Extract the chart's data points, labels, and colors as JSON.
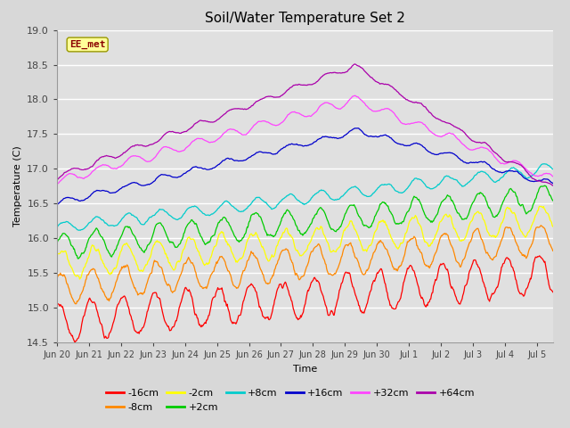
{
  "title": "Soil/Water Temperature Set 2",
  "xlabel": "Time",
  "ylabel": "Temperature (C)",
  "ylim": [
    14.5,
    19.0
  ],
  "annotation": "EE_met",
  "bg_color": "#d8d8d8",
  "plot_bg_color": "#e0e0e0",
  "series": [
    {
      "label": "-16cm",
      "color": "#ff0000"
    },
    {
      "label": "-8cm",
      "color": "#ff8800"
    },
    {
      "label": "-2cm",
      "color": "#ffff00"
    },
    {
      "label": "+2cm",
      "color": "#00cc00"
    },
    {
      "label": "+8cm",
      "color": "#00cccc"
    },
    {
      "label": "+16cm",
      "color": "#0000cc"
    },
    {
      "label": "+32cm",
      "color": "#ff44ff"
    },
    {
      "label": "+64cm",
      "color": "#aa00aa"
    }
  ],
  "xtick_labels": [
    "Jun 20",
    "Jun 21",
    "Jun 22",
    "Jun 23",
    "Jun 24",
    "Jun 25",
    "Jun 26",
    "Jun 27",
    "Jun 28",
    "Jun 29",
    "Jun 30",
    "Jul 1",
    "Jul 2",
    "Jul 3",
    "Jul 4",
    "Jul 5"
  ],
  "ytick_labels": [
    "14.5",
    "15.0",
    "15.5",
    "16.0",
    "16.5",
    "17.0",
    "17.5",
    "18.0",
    "18.5",
    "19.0"
  ],
  "ytick_vals": [
    14.5,
    15.0,
    15.5,
    16.0,
    16.5,
    17.0,
    17.5,
    18.0,
    18.5,
    19.0
  ],
  "n_days": 15.5,
  "n_points": 744,
  "title_fontsize": 11,
  "axis_fontsize": 8,
  "tick_fontsize": 8,
  "legend_fontsize": 8
}
